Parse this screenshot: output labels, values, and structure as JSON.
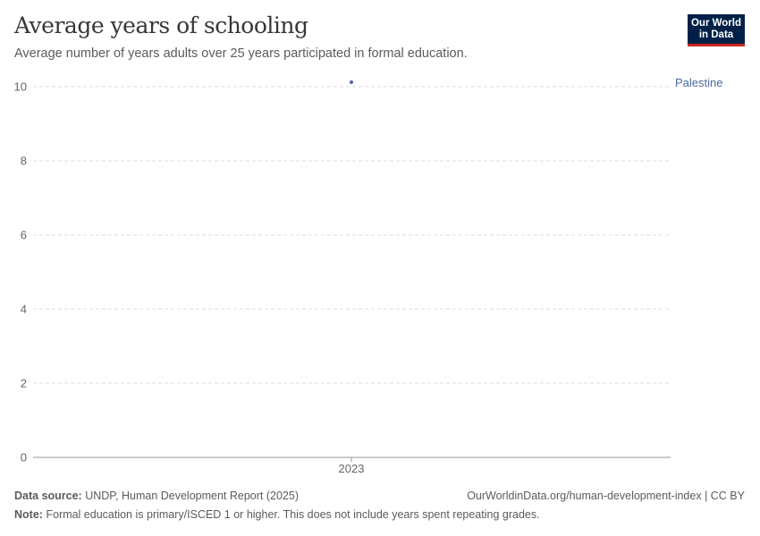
{
  "header": {
    "title": "Average years of schooling",
    "subtitle": "Average number of years adults over 25 years participated in formal education.",
    "logo": "Our World in Data"
  },
  "chart_data": {
    "type": "scatter",
    "x": [
      2023
    ],
    "series": [
      {
        "name": "Palestine",
        "values": [
          10.12
        ],
        "color": "#4c6a9c"
      }
    ],
    "xticks": [
      "2023"
    ],
    "yticks": [
      0,
      2,
      4,
      6,
      8,
      10
    ],
    "ylim": [
      0,
      10
    ],
    "grid": "horizontal dashed",
    "legend": "right, inline label"
  },
  "footer": {
    "source_label": "Data source:",
    "source": "UNDP, Human Development Report (2025)",
    "url": "OurWorldinData.org/human-development-index | CC BY",
    "note_label": "Note:",
    "note": "Formal education is primary/ISCED 1 or higher. This does not include years spent repeating grades."
  }
}
